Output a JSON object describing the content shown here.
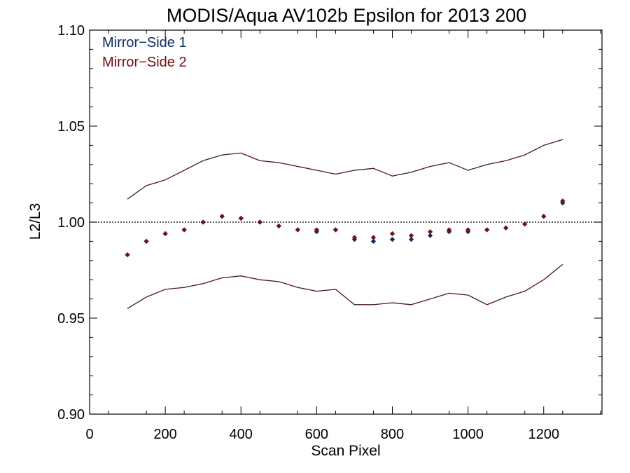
{
  "chart_data": {
    "type": "scatter",
    "title": "MODIS/Aqua AV102b Epsilon for 2013 200",
    "xlabel": "Scan Pixel",
    "ylabel": "L2/L3",
    "xlim": [
      0,
      1354
    ],
    "ylim": [
      0.9,
      1.1
    ],
    "x_ticks": [
      0,
      200,
      400,
      600,
      800,
      1000,
      1200
    ],
    "x_tick_labels": [
      "0",
      "200",
      "400",
      "600",
      "800",
      "1000",
      "1200"
    ],
    "y_ticks": [
      0.9,
      0.95,
      1.0,
      1.05,
      1.1
    ],
    "y_tick_labels": [
      "0.90",
      "0.95",
      "1.00",
      "1.05",
      "1.10"
    ],
    "reference_line": 1.0,
    "legend_position": "top-left",
    "grid": false,
    "series": [
      {
        "name": "Mirror−Side 1",
        "color": "#0c2c6a",
        "marker": "diamond",
        "x": [
          100,
          150,
          200,
          250,
          300,
          350,
          400,
          450,
          500,
          550,
          600,
          650,
          700,
          750,
          800,
          850,
          900,
          950,
          1000,
          1050,
          1100,
          1150,
          1200,
          1250
        ],
        "y": [
          0.983,
          0.99,
          0.994,
          0.996,
          1.0,
          1.003,
          1.002,
          1.0,
          0.998,
          0.996,
          0.995,
          0.996,
          0.991,
          0.99,
          0.991,
          0.991,
          0.993,
          0.995,
          0.995,
          0.996,
          0.997,
          0.999,
          1.003,
          1.01
        ],
        "upper": [
          1.012,
          1.019,
          1.022,
          1.027,
          1.032,
          1.035,
          1.036,
          1.032,
          1.031,
          1.029,
          1.027,
          1.025,
          1.027,
          1.028,
          1.024,
          1.026,
          1.029,
          1.031,
          1.027,
          1.03,
          1.032,
          1.035,
          1.04,
          1.043
        ],
        "lower": [
          0.955,
          0.961,
          0.965,
          0.966,
          0.968,
          0.971,
          0.972,
          0.97,
          0.969,
          0.966,
          0.964,
          0.965,
          0.957,
          0.957,
          0.958,
          0.957,
          0.96,
          0.963,
          0.962,
          0.957,
          0.961,
          0.964,
          0.97,
          0.978
        ]
      },
      {
        "name": "Mirror−Side 2",
        "color": "#7a0c12",
        "marker": "diamond",
        "x": [
          100,
          150,
          200,
          250,
          300,
          350,
          400,
          450,
          500,
          550,
          600,
          650,
          700,
          750,
          800,
          850,
          900,
          950,
          1000,
          1050,
          1100,
          1150,
          1200,
          1250
        ],
        "y": [
          0.983,
          0.99,
          0.994,
          0.996,
          1.0,
          1.003,
          1.002,
          1.0,
          0.998,
          0.996,
          0.996,
          0.996,
          0.992,
          0.992,
          0.994,
          0.993,
          0.995,
          0.996,
          0.996,
          0.996,
          0.997,
          0.999,
          1.003,
          1.011
        ],
        "upper": [
          1.012,
          1.019,
          1.022,
          1.027,
          1.032,
          1.035,
          1.036,
          1.032,
          1.031,
          1.029,
          1.027,
          1.025,
          1.027,
          1.028,
          1.024,
          1.026,
          1.029,
          1.031,
          1.027,
          1.03,
          1.032,
          1.035,
          1.04,
          1.043
        ],
        "lower": [
          0.955,
          0.961,
          0.965,
          0.966,
          0.968,
          0.971,
          0.972,
          0.97,
          0.969,
          0.966,
          0.964,
          0.965,
          0.957,
          0.957,
          0.958,
          0.957,
          0.96,
          0.963,
          0.962,
          0.957,
          0.961,
          0.964,
          0.97,
          0.978
        ]
      }
    ]
  }
}
